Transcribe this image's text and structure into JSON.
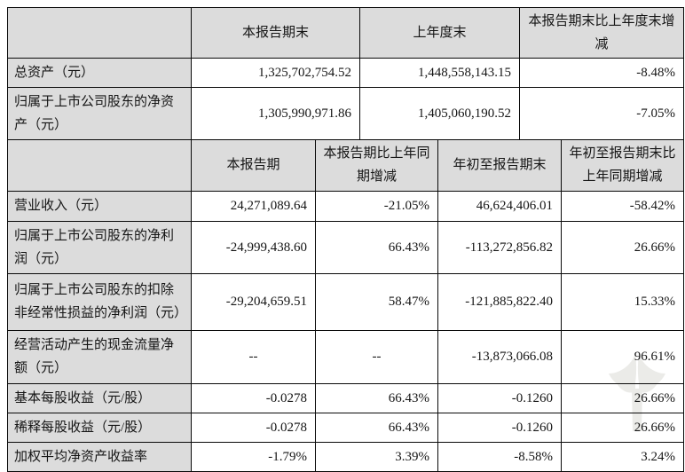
{
  "table_top": {
    "headers": [
      "",
      "本报告期末",
      "上年度末",
      "本报告期末比上年度末增减"
    ],
    "rows": [
      {
        "label": "总资产（元）",
        "values": [
          "1,325,702,754.52",
          "1,448,558,143.15",
          "-8.48%"
        ]
      },
      {
        "label": "归属于上市公司股东的净资产（元）",
        "values": [
          "1,305,990,971.86",
          "1,405,060,190.52",
          "-7.05%"
        ]
      }
    ]
  },
  "table_bottom": {
    "headers": [
      "",
      "本报告期",
      "本报告期比上年同期增减",
      "年初至报告期末",
      "年初至报告期末比上年同期增减"
    ],
    "rows": [
      {
        "label": "营业收入（元）",
        "values": [
          "24,271,089.64",
          "-21.05%",
          "46,624,406.01",
          "-58.42%"
        ]
      },
      {
        "label": "归属于上市公司股东的净利润（元）",
        "values": [
          "-24,999,438.60",
          "66.43%",
          "-113,272,856.82",
          "26.66%"
        ]
      },
      {
        "label": "归属于上市公司股东的扣除非经常性损益的净利润（元）",
        "values": [
          "-29,204,659.51",
          "58.47%",
          "-121,885,822.40",
          "15.33%"
        ]
      },
      {
        "label": "经营活动产生的现金流量净额（元）",
        "values": [
          "--",
          "--",
          "-13,873,066.08",
          "96.61%"
        ],
        "gray_cells": [
          0,
          1
        ]
      },
      {
        "label": "基本每股收益（元/股）",
        "values": [
          "-0.0278",
          "66.43%",
          "-0.1260",
          "26.66%"
        ]
      },
      {
        "label": "稀释每股收益（元/股）",
        "values": [
          "-0.0278",
          "66.43%",
          "-0.1260",
          "26.66%"
        ]
      },
      {
        "label": "加权平均净资产收益率",
        "values": [
          "-1.79%",
          "3.39%",
          "-8.58%",
          "3.24%"
        ]
      }
    ]
  },
  "colors": {
    "cell_shading": "#dcdcdc",
    "grid_line": "#090909",
    "text": "#151515",
    "watermark": "#e9e9e6"
  },
  "icons": {
    "watermark": "leaf-logo-watermark"
  }
}
